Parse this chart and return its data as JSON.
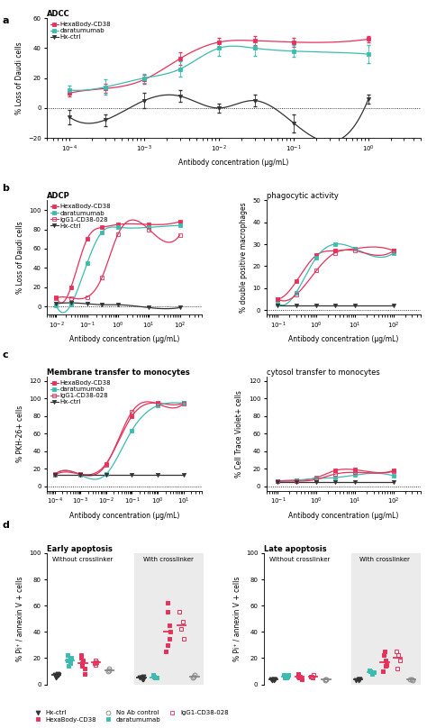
{
  "panel_a": {
    "title": "ADCC",
    "xlabel": "Antibody concentration (µg/mL)",
    "ylabel": "% Loss of Daudi cells",
    "ylim": [
      -20,
      60
    ],
    "yticks": [
      -20,
      0,
      20,
      40,
      60
    ],
    "series": [
      {
        "label": "HexaBody-CD38",
        "color": "#e8315a",
        "marker": "s",
        "filled": true,
        "x": [
          0.0001,
          0.0003,
          0.001,
          0.003,
          0.01,
          0.03,
          0.1,
          1
        ],
        "y": [
          10,
          13,
          19,
          33,
          44,
          45,
          44,
          46
        ],
        "yerr": [
          2,
          3,
          3,
          4,
          3,
          3,
          3,
          2
        ]
      },
      {
        "label": "daratumumab",
        "color": "#3abcb0",
        "marker": "s",
        "filled": true,
        "x": [
          0.0001,
          0.0003,
          0.001,
          0.003,
          0.01,
          0.03,
          0.1,
          1
        ],
        "y": [
          12,
          14,
          20,
          26,
          40,
          40,
          38,
          36
        ],
        "yerr": [
          3,
          5,
          3,
          5,
          5,
          5,
          4,
          6
        ]
      },
      {
        "label": "Hx-ctrl",
        "color": "#333333",
        "marker": "v",
        "filled": true,
        "x": [
          0.0001,
          0.0003,
          0.001,
          0.003,
          0.01,
          0.03,
          0.1,
          1
        ],
        "y": [
          -6,
          -8,
          5,
          8,
          0,
          5,
          -10,
          6
        ],
        "yerr": [
          5,
          4,
          5,
          4,
          3,
          4,
          6,
          3
        ]
      }
    ]
  },
  "panel_b_left": {
    "title": "ADCP",
    "xlabel": "Antibody concentration (µg/mL)",
    "ylabel": "% Loss of Daudi cells",
    "ylim": [
      -8,
      110
    ],
    "yticks": [
      0,
      20,
      40,
      60,
      80,
      100
    ],
    "xlim": [
      0.005,
      500
    ],
    "series": [
      {
        "label": "HexaBody-CD38",
        "color": "#e8315a",
        "marker": "s",
        "filled": true,
        "x": [
          0.01,
          0.03,
          0.1,
          0.3,
          1,
          10,
          100
        ],
        "y": [
          10,
          20,
          70,
          82,
          85,
          85,
          88
        ],
        "yerr": [
          0,
          0,
          0,
          0,
          0,
          0,
          0
        ]
      },
      {
        "label": "daratumumab",
        "color": "#3abcb0",
        "marker": "s",
        "filled": true,
        "x": [
          0.01,
          0.03,
          0.1,
          0.3,
          1,
          10,
          100
        ],
        "y": [
          1,
          2,
          45,
          77,
          82,
          82,
          84
        ],
        "yerr": [
          0,
          0,
          0,
          0,
          0,
          0,
          0
        ]
      },
      {
        "label": "IgG1-CD38-028",
        "color": "#e8315a",
        "marker": "s",
        "filled": false,
        "x": [
          0.01,
          0.03,
          0.1,
          0.3,
          1,
          10,
          100
        ],
        "y": [
          9,
          9,
          10,
          30,
          75,
          80,
          74
        ],
        "yerr": [
          0,
          0,
          0,
          0,
          0,
          0,
          0
        ]
      },
      {
        "label": "Hx-ctrl",
        "color": "#333333",
        "marker": "v",
        "filled": true,
        "x": [
          0.01,
          0.03,
          0.1,
          0.3,
          1,
          10,
          100
        ],
        "y": [
          3,
          4,
          3,
          2,
          2,
          -1,
          -1
        ],
        "yerr": [
          0,
          0,
          0,
          0,
          0,
          0,
          0
        ]
      }
    ]
  },
  "panel_b_right": {
    "title": "phagocytic activity",
    "xlabel": "Antibody concentration (µg/mL)",
    "ylabel": "% double positive macrophages",
    "ylim": [
      -2,
      50
    ],
    "yticks": [
      0,
      10,
      20,
      30,
      40,
      50
    ],
    "xlim": [
      0.05,
      500
    ],
    "series": [
      {
        "label": "HexaBody-CD38",
        "color": "#e8315a",
        "marker": "s",
        "filled": true,
        "x": [
          0.1,
          0.3,
          1,
          3,
          10,
          100
        ],
        "y": [
          5,
          13,
          25,
          27,
          28,
          27
        ],
        "yerr": [
          0,
          0,
          0,
          0,
          0,
          0
        ]
      },
      {
        "label": "daratumumab",
        "color": "#3abcb0",
        "marker": "s",
        "filled": true,
        "x": [
          0.1,
          0.3,
          1,
          3,
          10,
          100
        ],
        "y": [
          3,
          8,
          24,
          30,
          28,
          26
        ],
        "yerr": [
          0,
          0,
          0,
          0,
          0,
          0
        ]
      },
      {
        "label": "IgG1-CD38-028",
        "color": "#e8315a",
        "marker": "s",
        "filled": false,
        "x": [
          0.1,
          0.3,
          1,
          3,
          10,
          100
        ],
        "y": [
          5,
          7,
          18,
          26,
          27,
          27
        ],
        "yerr": [
          0,
          0,
          0,
          0,
          0,
          0
        ]
      },
      {
        "label": "Hx-ctrl",
        "color": "#333333",
        "marker": "v",
        "filled": true,
        "x": [
          0.1,
          0.3,
          1,
          3,
          10,
          100
        ],
        "y": [
          2,
          2,
          2,
          2,
          2,
          2
        ],
        "yerr": [
          0,
          0,
          0,
          0,
          0,
          0
        ]
      }
    ]
  },
  "panel_c_left": {
    "title": "Membrane transfer to monocytes",
    "xlabel": "Antibody concentration (µg/mL)",
    "ylabel": "% PKH-26+ cells",
    "ylim": [
      -5,
      125
    ],
    "yticks": [
      0,
      20,
      40,
      60,
      80,
      100,
      120
    ],
    "xlim": [
      5e-05,
      50
    ],
    "series": [
      {
        "label": "HexaBody-CD38",
        "color": "#e8315a",
        "marker": "s",
        "filled": true,
        "x": [
          0.0001,
          0.001,
          0.01,
          0.1,
          1,
          10
        ],
        "y": [
          13,
          14,
          26,
          80,
          95,
          95
        ],
        "yerr": [
          0,
          0,
          0,
          0,
          0,
          0
        ]
      },
      {
        "label": "daratumumab",
        "color": "#3abcb0",
        "marker": "s",
        "filled": true,
        "x": [
          0.0001,
          0.001,
          0.01,
          0.1,
          1,
          10
        ],
        "y": [
          13,
          13,
          14,
          64,
          92,
          95
        ],
        "yerr": [
          0,
          0,
          0,
          0,
          0,
          0
        ]
      },
      {
        "label": "IgG1-CD38-028",
        "color": "#e8315a",
        "marker": "s",
        "filled": false,
        "x": [
          0.0001,
          0.001,
          0.01,
          0.1,
          1,
          10
        ],
        "y": [
          14,
          14,
          25,
          85,
          94,
          94
        ],
        "yerr": [
          0,
          0,
          0,
          0,
          0,
          0
        ]
      },
      {
        "label": "Hx-ctrl",
        "color": "#333333",
        "marker": "v",
        "filled": true,
        "x": [
          0.0001,
          0.001,
          0.01,
          0.1,
          1,
          10
        ],
        "y": [
          13,
          13,
          13,
          13,
          13,
          13
        ],
        "yerr": [
          0,
          0,
          0,
          0,
          0,
          0
        ]
      }
    ]
  },
  "panel_c_right": {
    "title": "cytosol transfer to monocytes",
    "xlabel": "Antibody concentration (µg/mL)",
    "ylabel": "% Cell Trace Violet+ cells",
    "ylim": [
      -5,
      125
    ],
    "yticks": [
      0,
      20,
      40,
      60,
      80,
      100,
      120
    ],
    "xlim": [
      0.05,
      500
    ],
    "series": [
      {
        "label": "HexaBody-CD38",
        "color": "#e8315a",
        "marker": "s",
        "filled": true,
        "x": [
          0.1,
          0.3,
          1,
          3,
          10,
          100
        ],
        "y": [
          6,
          7,
          10,
          18,
          19,
          18
        ],
        "yerr": [
          0,
          0,
          0,
          0,
          0,
          0
        ]
      },
      {
        "label": "daratumumab",
        "color": "#3abcb0",
        "marker": "s",
        "filled": true,
        "x": [
          0.1,
          0.3,
          1,
          3,
          10,
          100
        ],
        "y": [
          6,
          7,
          9,
          10,
          13,
          12
        ],
        "yerr": [
          0,
          0,
          0,
          0,
          0,
          0
        ]
      },
      {
        "label": "IgG1-CD38-028",
        "color": "#e8315a",
        "marker": "s",
        "filled": false,
        "x": [
          0.1,
          0.3,
          1,
          3,
          10,
          100
        ],
        "y": [
          6,
          6,
          8,
          14,
          16,
          17
        ],
        "yerr": [
          0,
          0,
          0,
          0,
          0,
          0
        ]
      },
      {
        "label": "Hx-ctrl",
        "color": "#333333",
        "marker": "v",
        "filled": true,
        "x": [
          0.1,
          0.3,
          1,
          3,
          10,
          100
        ],
        "y": [
          5,
          5,
          5,
          5,
          5,
          5
        ],
        "yerr": [
          0,
          0,
          0,
          0,
          0,
          0
        ]
      }
    ]
  },
  "panel_d": {
    "early_title": "Early apoptosis",
    "late_title": "Late apoptosis",
    "ylabel": "% Pi⁺ / annexin V + cells",
    "group_labels": [
      "Without crosslinker",
      "With crosslinker"
    ],
    "early_ylim": [
      0,
      100
    ],
    "early_yticks": [
      0,
      20,
      40,
      60,
      80,
      100
    ],
    "late_ylim": [
      0,
      100
    ],
    "late_yticks": [
      0,
      20,
      40,
      60,
      80,
      100
    ],
    "hxctrl_early_wo": [
      5,
      7,
      8,
      6,
      7
    ],
    "dara_early_wo": [
      14,
      18,
      20,
      16,
      19,
      22
    ],
    "hexa_early_wo": [
      8,
      12,
      16,
      20,
      22,
      14,
      18
    ],
    "igG1_early_wo": [
      15,
      18,
      17,
      16
    ],
    "noab_early_wo": [
      10,
      12,
      11
    ],
    "hxctrl_early_wi": [
      4,
      5,
      6,
      5,
      4
    ],
    "dara_early_wi": [
      5,
      6,
      7,
      5
    ],
    "hexa_early_wi": [
      25,
      35,
      45,
      55,
      62,
      40,
      30
    ],
    "igG1_early_wi": [
      35,
      42,
      55,
      48
    ],
    "noab_early_wi": [
      5,
      7,
      6
    ],
    "hxctrl_late_wo": [
      3,
      4,
      4,
      3,
      4
    ],
    "dara_late_wo": [
      5,
      6,
      7,
      5,
      6,
      7
    ],
    "hexa_late_wo": [
      4,
      5,
      6,
      7,
      8,
      5,
      6
    ],
    "igG1_late_wo": [
      5,
      6,
      7,
      6
    ],
    "noab_late_wo": [
      3,
      4,
      4
    ],
    "hxctrl_late_wi": [
      3,
      4,
      4,
      3,
      4
    ],
    "dara_late_wi": [
      8,
      10,
      11,
      9
    ],
    "hexa_late_wi": [
      10,
      14,
      18,
      22,
      25,
      15
    ],
    "igG1_late_wi": [
      12,
      18,
      22,
      25
    ],
    "noab_late_wi": [
      3,
      4,
      4
    ]
  },
  "lfs": 5.5,
  "tfs": 6.0,
  "tkfs": 5.0,
  "lgfs": 5.0
}
